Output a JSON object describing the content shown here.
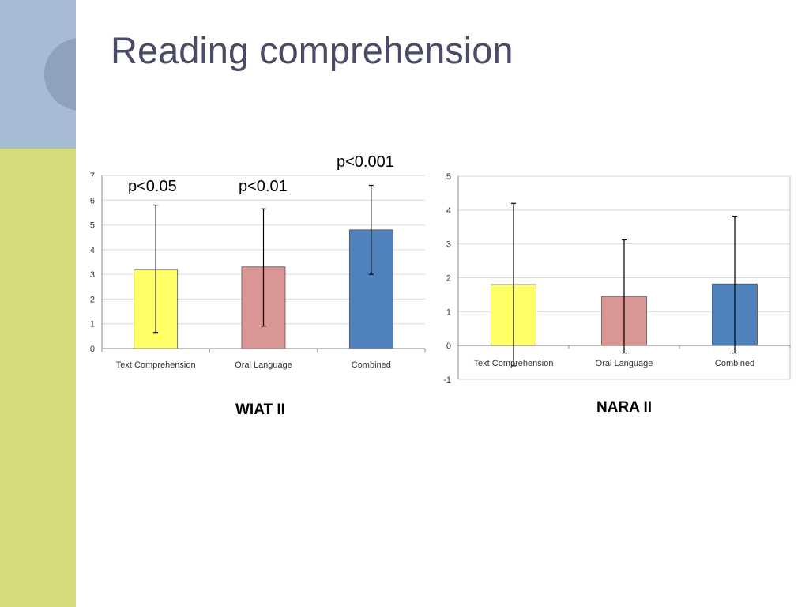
{
  "slide": {
    "title": "Reading comprehension"
  },
  "colors": {
    "yellow": "#ffff66",
    "pink": "#d99694",
    "blue": "#4f81bd"
  },
  "chart_data": [
    {
      "type": "bar",
      "categories": [
        "Text Comprehension",
        "Oral Language",
        "Combined"
      ],
      "values": [
        3.2,
        3.3,
        4.8
      ],
      "error_low": [
        0.65,
        0.9,
        3.0
      ],
      "error_high": [
        5.8,
        5.65,
        6.6
      ],
      "ylim": [
        0,
        7
      ],
      "yticks": [
        0,
        1,
        2,
        3,
        4,
        5,
        6,
        7
      ],
      "grid": true,
      "caption": "WIAT II",
      "annotations": [
        "p<0.05",
        "p<0.01",
        "p<0.001"
      ]
    },
    {
      "type": "bar",
      "categories": [
        "Text Comprehension",
        "Oral Language",
        "Combined"
      ],
      "values": [
        1.8,
        1.45,
        1.82
      ],
      "error_low": [
        -0.6,
        -0.22,
        -0.22
      ],
      "error_high": [
        4.2,
        3.12,
        3.82
      ],
      "ylim": [
        -1,
        5
      ],
      "yticks": [
        -1,
        0,
        1,
        2,
        3,
        4,
        5
      ],
      "grid": true,
      "caption": "NARA II"
    }
  ]
}
